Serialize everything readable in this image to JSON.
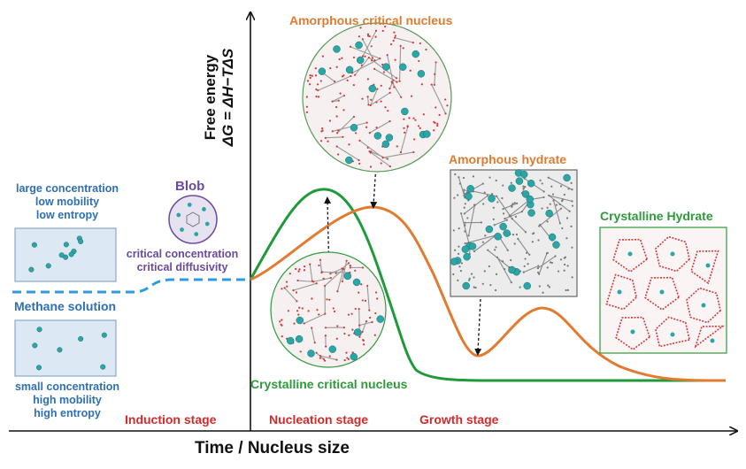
{
  "axes": {
    "x_label": "Time / Nucleus size",
    "y_label_line1": "Free energy",
    "y_label_line2": "ΔG = ΔH−TΔS"
  },
  "stages": {
    "induction": "Induction stage",
    "nucleation": "Nucleation stage",
    "growth": "Growth stage"
  },
  "solution": {
    "label": "Methane solution",
    "top_lines": [
      "large concentration",
      "low mobility",
      "low entropy"
    ],
    "bottom_lines": [
      "small concentration",
      "high mobility",
      "high entropy"
    ]
  },
  "blob": {
    "title": "Blob",
    "lines": [
      "critical concentration",
      "critical diffusivity"
    ]
  },
  "annotations": {
    "amorphous_nucleus": "Amorphous critical nucleus",
    "amorphous_hydrate": "Amorphous hydrate",
    "crystalline_hydrate": "Crystalline Hydrate",
    "crystalline_nucleus": "Crystalline critical nucleus"
  },
  "colors": {
    "orange_curve": "#e07b30",
    "green_curve": "#1f9a3a",
    "solution_curve": "#2f9ae0",
    "stage_text": "#d42a2a",
    "solution_text": "#2e6fb5",
    "blob_text": "#6a4aa0",
    "water_network": "#cf3b3b",
    "gas_molecule": "#2aa6a6"
  }
}
